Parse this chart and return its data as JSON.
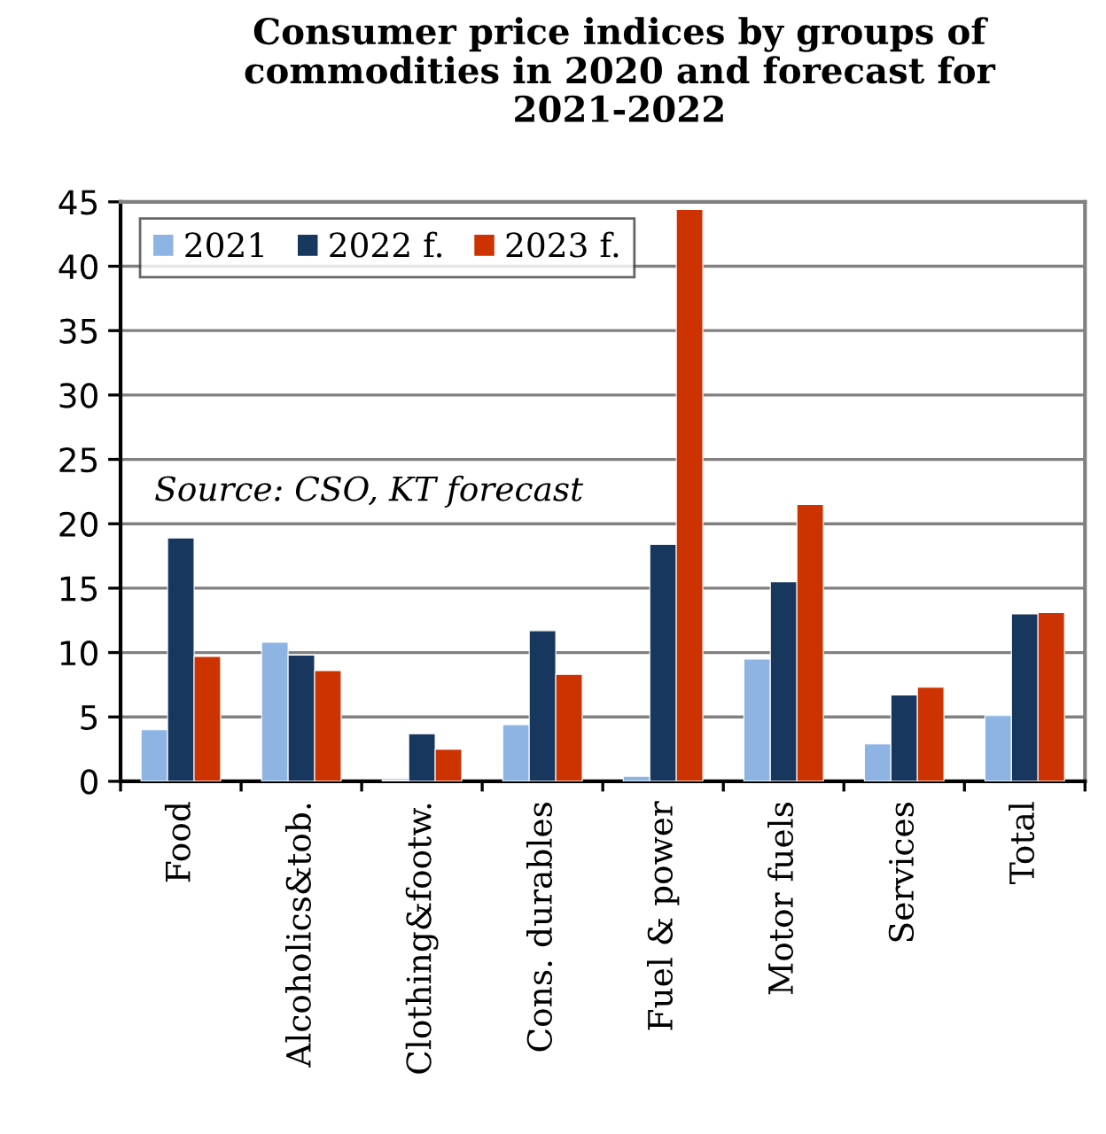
{
  "chart_data": {
    "type": "bar",
    "title": "Consumer price indices by groups of commodities in 2020 and forecast for 2021-2022",
    "categories": [
      "Food",
      "Alcoholics&tob.",
      "Clothing&footw.",
      "Cons. durables",
      "Fuel & power",
      "Motor fuels",
      "Services",
      "Total"
    ],
    "series": [
      {
        "name": "2021",
        "color": "#8db4e2",
        "values": [
          4.0,
          10.8,
          0.1,
          4.4,
          0.4,
          9.5,
          2.9,
          5.1
        ]
      },
      {
        "name": "2022 f.",
        "color": "#17375e",
        "values": [
          18.9,
          9.8,
          3.7,
          11.7,
          18.4,
          15.5,
          6.7,
          13.0
        ]
      },
      {
        "name": "2023 f.",
        "color": "#cc3300",
        "values": [
          9.7,
          8.6,
          2.5,
          8.3,
          44.4,
          21.5,
          7.3,
          13.1
        ]
      }
    ],
    "ylim": [
      0,
      45
    ],
    "yticks": [
      0,
      5,
      10,
      15,
      20,
      25,
      30,
      35,
      40,
      45
    ],
    "grid": "y",
    "legend": "top left",
    "annotations": [
      "Source: CSO, KT forecast"
    ]
  }
}
